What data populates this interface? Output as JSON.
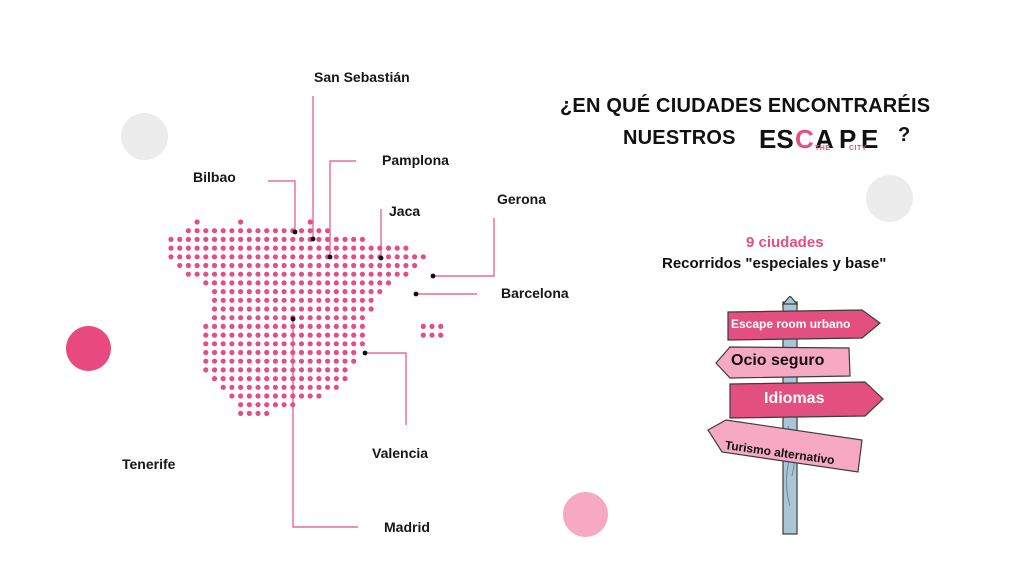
{
  "heading": {
    "line1": "¿EN QUÉ CIUDADES ENCONTRARÉIS",
    "line2": "NUESTROS",
    "logo_part1": "ES",
    "logo_part2": "C",
    "logo_part3": "A",
    "logo_part4": "P",
    "logo_part5": "E",
    "logo_the": "THE",
    "logo_city": "CITY",
    "question_mark": "?"
  },
  "summary": {
    "count": "9 ciudades",
    "tours": "Recorridos \"especiales y base\""
  },
  "cities": {
    "san_sebastian": "San Sebastián",
    "pamplona": "Pamplona",
    "bilbao": "Bilbao",
    "gerona": "Gerona",
    "jaca": "Jaca",
    "barcelona": "Barcelona",
    "tenerife": "Tenerife",
    "valencia": "Valencia",
    "madrid": "Madrid"
  },
  "signs": {
    "sign1": "Escape room urbano",
    "sign2": "Ocio seguro",
    "sign3": "Idiomas",
    "sign4": "Turismo alternativo"
  },
  "colors": {
    "accent": "#e3507f",
    "accent_light": "#f7a9c4",
    "decor_gray": "#ececed",
    "text": "#111111"
  }
}
